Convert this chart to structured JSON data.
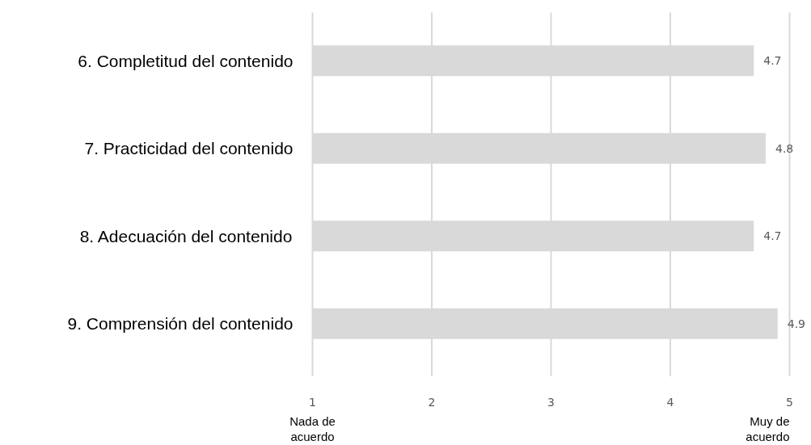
{
  "chart_data": {
    "type": "bar",
    "orientation": "horizontal",
    "categories": [
      "6. Completitud del contenido",
      "7. Practicidad del contenido",
      "8. Adecuación del contenido",
      "9. Comprensión del contenido"
    ],
    "values": [
      4.7,
      4.8,
      4.7,
      4.9
    ],
    "color": "#d9d9d9",
    "data_labels": true,
    "xlim": [
      1,
      5
    ],
    "xticks": [
      1,
      2,
      3,
      4,
      5
    ],
    "grid": "x",
    "annotations": [
      "Nada de\nacuerdo",
      "Muy de\nacuerdo"
    ]
  }
}
